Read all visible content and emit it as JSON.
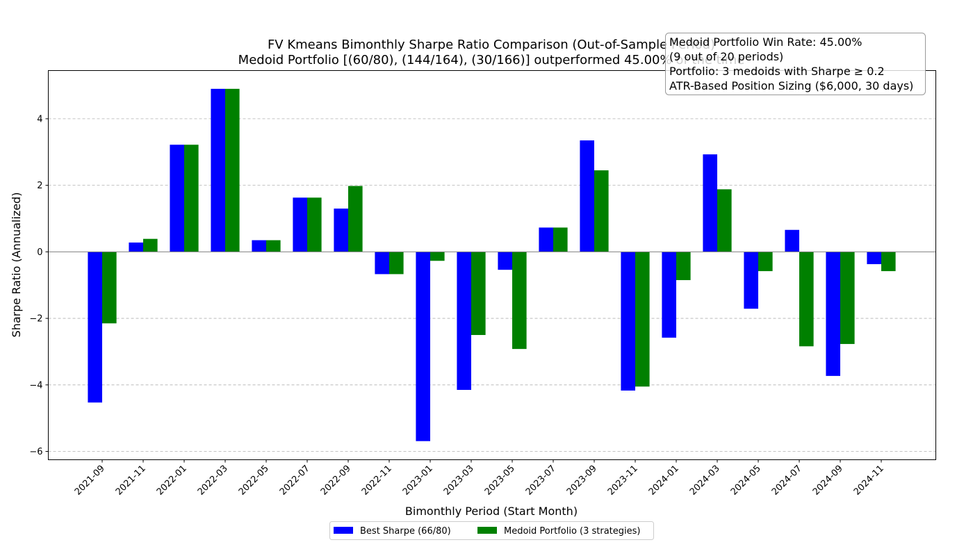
{
  "chart_data": {
    "type": "bar",
    "title_line1": "FV Kmeans Bimonthly Sharpe Ratio Comparison (Out-of-Sample Period)",
    "title_line2": "Medoid Portfolio [(60/80), (144/164), (30/166)] outperformed 45.00% of the time",
    "xlabel": "Bimonthly Period (Start Month)",
    "ylabel": "Sharpe Ratio (Annualized)",
    "ylim": [
      -6.25,
      5.45
    ],
    "yticks": [
      -6,
      -4,
      -2,
      0,
      2,
      4
    ],
    "ytick_labels": [
      "−6",
      "−4",
      "−2",
      "0",
      "2",
      "4"
    ],
    "grid": "horizontal dashed",
    "legend_position": "bottom-center",
    "categories": [
      "2021-09",
      "2021-11",
      "2022-01",
      "2022-03",
      "2022-05",
      "2022-07",
      "2022-09",
      "2022-11",
      "2023-01",
      "2023-03",
      "2023-05",
      "2023-07",
      "2023-09",
      "2023-11",
      "2024-01",
      "2024-03",
      "2024-05",
      "2024-07",
      "2024-09",
      "2024-11"
    ],
    "series": [
      {
        "name": "Best Sharpe (66/80)",
        "color": "#0000ff",
        "values": [
          -4.53,
          0.28,
          3.22,
          4.9,
          0.35,
          1.63,
          1.3,
          -0.67,
          -5.69,
          -4.15,
          -0.54,
          0.73,
          3.35,
          -4.17,
          -2.58,
          2.93,
          -1.71,
          0.66,
          -3.73,
          -0.37
        ]
      },
      {
        "name": "Medoid Portfolio (3 strategies)",
        "color": "#008000",
        "values": [
          -2.15,
          0.39,
          3.22,
          4.9,
          0.35,
          1.63,
          1.98,
          -0.67,
          -0.27,
          -2.5,
          -2.92,
          0.73,
          2.45,
          -4.05,
          -0.85,
          1.88,
          -0.58,
          -2.84,
          -2.77,
          -0.58
        ]
      }
    ],
    "annotation": {
      "lines": [
        "Medoid Portfolio Win Rate: 45.00%",
        "(9 out of 20 periods)",
        "Portfolio: 3 medoids with Sharpe ≥ 0.2",
        "ATR-Based Position Sizing ($6,000, 30 days)"
      ],
      "position": "top-right"
    }
  }
}
